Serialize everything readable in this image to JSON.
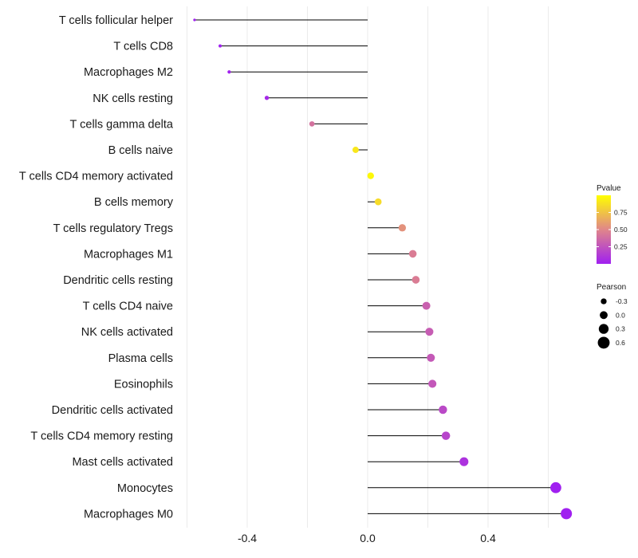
{
  "chart_data": {
    "type": "lollipop",
    "title": "",
    "xlabel": "",
    "ylabel": "",
    "xlim": [
      -0.6,
      0.67
    ],
    "xticks": [
      -0.4,
      0.0,
      0.4
    ],
    "xtick_labels": [
      "-0.4",
      "0.0",
      "0.4"
    ],
    "grid": true,
    "categories": [
      "T cells follicular helper",
      "T cells CD8",
      "Macrophages M2",
      "NK cells resting",
      "T cells gamma delta",
      "B cells naive",
      "T cells CD4 memory activated",
      "B cells memory",
      "T cells regulatory  Tregs ",
      "Macrophages M1",
      "Dendritic cells resting",
      "T cells CD4 naive",
      "NK cells activated",
      "Plasma cells",
      "Eosinophils",
      "Dendritic cells activated",
      "T cells CD4 memory resting",
      "Mast cells activated",
      "Monocytes",
      "Macrophages M0"
    ],
    "pearson": [
      -0.575,
      -0.49,
      -0.46,
      -0.335,
      -0.185,
      -0.04,
      0.01,
      0.035,
      0.115,
      0.15,
      0.16,
      0.195,
      0.205,
      0.21,
      0.215,
      0.25,
      0.26,
      0.32,
      0.625,
      0.66
    ],
    "pvalue": [
      0.0,
      0.0,
      0.01,
      0.04,
      0.4,
      0.9,
      0.97,
      0.85,
      0.55,
      0.45,
      0.45,
      0.32,
      0.3,
      0.28,
      0.27,
      0.2,
      0.18,
      0.09,
      0.0,
      0.0
    ],
    "legends": {
      "color": {
        "title": "Pvalue",
        "ticks": [
          0.25,
          0.5,
          0.75
        ],
        "tick_labels": [
          "0.25",
          "0.50",
          "0.75"
        ],
        "range": [
          0,
          1
        ],
        "low_color": "#a020f0",
        "mid_color": "#e0868a",
        "high_color": "#ffff00"
      },
      "size": {
        "title": "Pearson",
        "values": [
          -0.3,
          0.0,
          0.3,
          0.6
        ],
        "labels": [
          "-0.3",
          "0.0",
          "0.3",
          "0.6"
        ]
      }
    }
  },
  "colors": {
    "segment": "#000000",
    "grid": "#ebebeb",
    "background": "#ffffff"
  }
}
